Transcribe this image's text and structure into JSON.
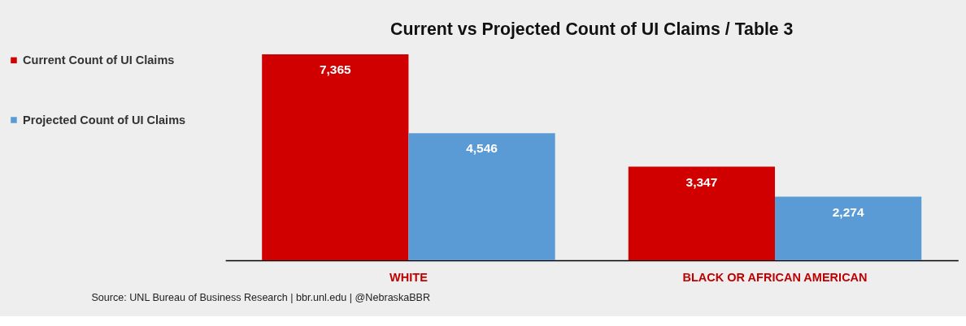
{
  "chart_data": {
    "type": "bar",
    "title": "Current vs Projected Count of UI Claims / Table 3",
    "categories": [
      "WHITE",
      "BLACK OR AFRICAN AMERICAN"
    ],
    "series": [
      {
        "name": "Current Count of UI Claims",
        "color": "#d00000",
        "values": [
          7365,
          3347
        ],
        "value_labels": [
          "7,365",
          "3,347"
        ]
      },
      {
        "name": "Projected Count of UI Claims",
        "color": "#5b9bd5",
        "values": [
          4546,
          2274
        ],
        "value_labels": [
          "4,546",
          "2,274"
        ]
      }
    ],
    "legend": "left",
    "grid": false,
    "annotations": [
      "Source: UNL Bureau of Business Research | bbr.unl.edu | @NebraskaBBR"
    ]
  }
}
